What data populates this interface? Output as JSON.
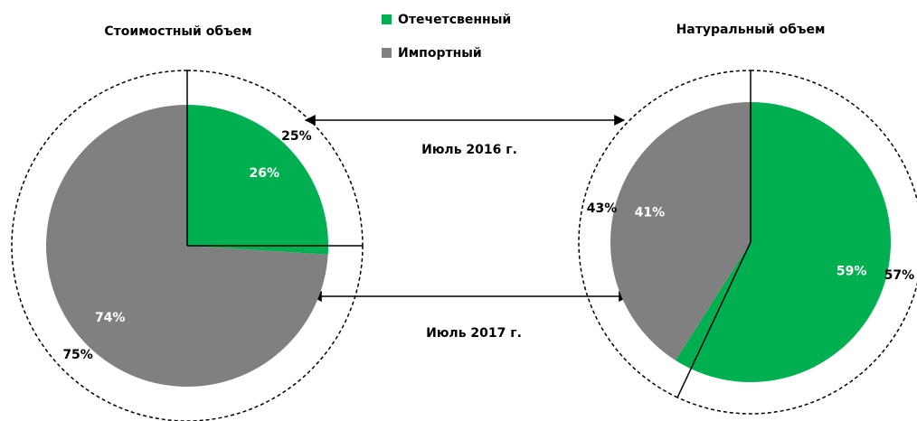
{
  "chart_data": [
    {
      "type": "pie",
      "title": "Стоимостный объем",
      "categories": [
        "Отечетсвенный",
        "Импортный"
      ],
      "colors": [
        "#00b050",
        "#808080"
      ],
      "series": [
        {
          "name": "Июль 2016 г.",
          "values": [
            25,
            75
          ],
          "value_labels": [
            "25%",
            "75%"
          ]
        },
        {
          "name": "Июль 2017 г.",
          "values": [
            26,
            74
          ],
          "value_labels": [
            "26%",
            "74%"
          ]
        }
      ]
    },
    {
      "type": "pie",
      "title": "Натуральный объем",
      "colors": [
        "#00b050",
        "#808080"
      ],
      "series": [
        {
          "values": [
            57,
            43
          ],
          "value_labels": [
            "57%",
            "43%"
          ]
        },
        {
          "values": [
            59,
            41
          ],
          "value_labels": [
            "59%",
            "41%"
          ]
        }
      ]
    }
  ]
}
